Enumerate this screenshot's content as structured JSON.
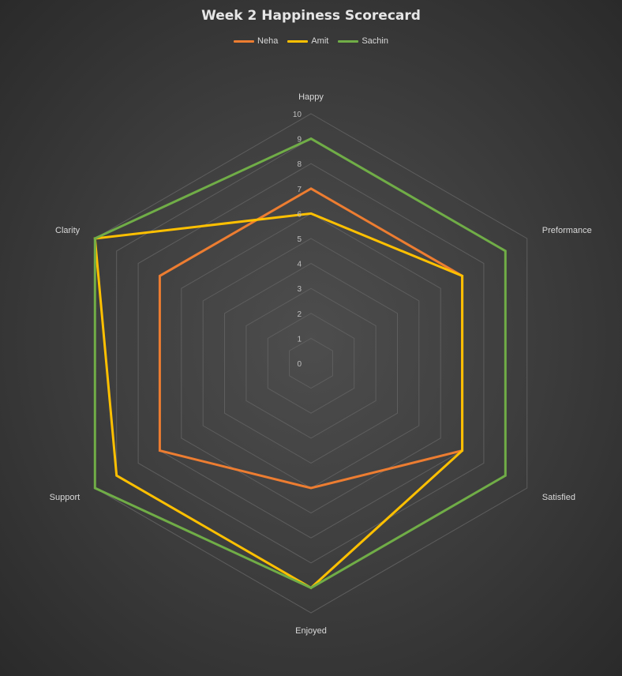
{
  "chart_data": {
    "type": "radar",
    "title": "Week 2 Happiness Scorecard",
    "categories": [
      "Happy",
      "Preformance",
      "Satisfied",
      "Enjoyed",
      "Support",
      "Clarity"
    ],
    "rlim": [
      0,
      10
    ],
    "ticks": [
      "0",
      "1",
      "2",
      "3",
      "4",
      "5",
      "6",
      "7",
      "8",
      "9",
      "10"
    ],
    "grid": true,
    "legend_position": "top",
    "series": [
      {
        "name": "Neha",
        "color": "#ed7d31",
        "values": [
          7,
          7,
          7,
          5,
          7,
          7
        ]
      },
      {
        "name": "Amit",
        "color": "#ffc000",
        "values": [
          6,
          7,
          7,
          9,
          9,
          10
        ]
      },
      {
        "name": "Sachin",
        "color": "#70ad47",
        "values": [
          9,
          9,
          9,
          9,
          10,
          10
        ]
      }
    ]
  }
}
